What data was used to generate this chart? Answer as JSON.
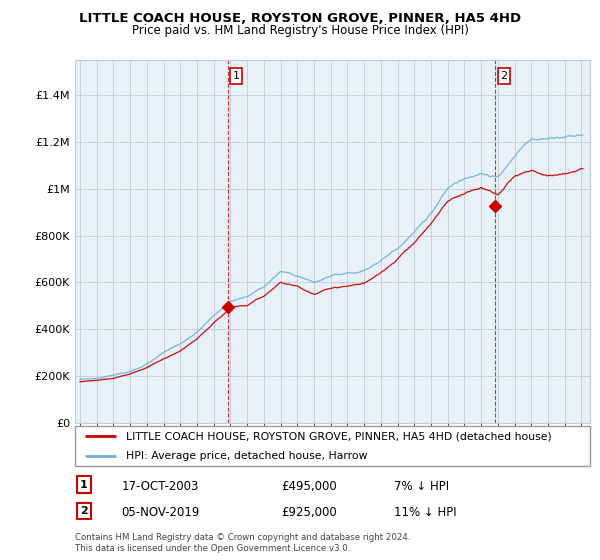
{
  "title": "LITTLE COACH HOUSE, ROYSTON GROVE, PINNER, HA5 4HD",
  "subtitle": "Price paid vs. HM Land Registry's House Price Index (HPI)",
  "footnote": "Contains HM Land Registry data © Crown copyright and database right 2024.\nThis data is licensed under the Open Government Licence v3.0.",
  "legend_line1": "LITTLE COACH HOUSE, ROYSTON GROVE, PINNER, HA5 4HD (detached house)",
  "legend_line2": "HPI: Average price, detached house, Harrow",
  "sale1_label": "1",
  "sale1_date": "17-OCT-2003",
  "sale1_price": "£495,000",
  "sale1_hpi": "7% ↓ HPI",
  "sale2_label": "2",
  "sale2_date": "05-NOV-2019",
  "sale2_price": "£925,000",
  "sale2_hpi": "11% ↓ HPI",
  "yticks": [
    0,
    200000,
    400000,
    600000,
    800000,
    1000000,
    1200000,
    1400000
  ],
  "ytick_labels": [
    "£0",
    "£200K",
    "£400K",
    "£600K",
    "£800K",
    "£1M",
    "£1.2M",
    "£1.4M"
  ],
  "ylim": [
    0,
    1550000
  ],
  "red_color": "#cc0000",
  "blue_color": "#6baed6",
  "chart_bg": "#e8f0f8",
  "grid_color": "#c0ccd8",
  "bg_color": "#ffffff",
  "marker1_year": 2003.83,
  "marker1_price": 495000,
  "marker2_year": 2019.85,
  "marker2_price": 925000,
  "dashed_line1_x": 2003.83,
  "dashed_line2_x": 2019.85,
  "xlim_start": 1994.7,
  "xlim_end": 2025.5
}
